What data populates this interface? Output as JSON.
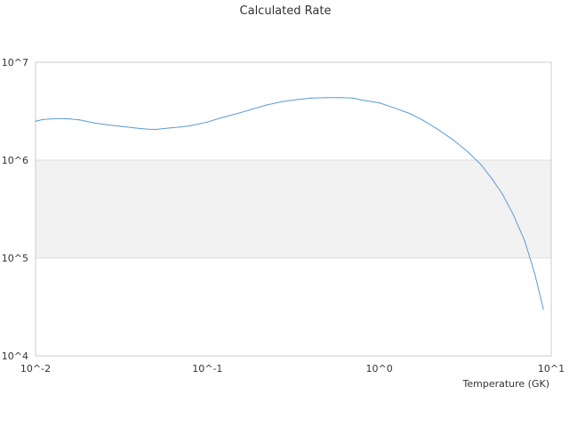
{
  "chart_data": {
    "type": "line",
    "title": "Calculated Rate",
    "xlabel": "Temperature (GK)",
    "ylabel": "",
    "x_scale": "log",
    "y_scale": "log",
    "xlim": [
      0.01,
      10
    ],
    "ylim": [
      10000,
      10000000
    ],
    "x_ticks": [
      "10^-2",
      "10^-1",
      "10^0",
      "10^1"
    ],
    "y_ticks": [
      "10^4",
      "10^5",
      "10^6",
      "10^7"
    ],
    "grid": "horizontal",
    "band_fill": [
      100000,
      1000000
    ],
    "colors": {
      "line": "#5b9bd5",
      "band": "#f2f2f2",
      "grid": "#dddddd",
      "axis": "#cccccc"
    },
    "series": [
      {
        "name": "",
        "x": [
          0.01,
          0.011,
          0.013,
          0.015,
          0.018,
          0.022,
          0.026,
          0.032,
          0.038,
          0.045,
          0.05,
          0.06,
          0.07,
          0.08,
          0.1,
          0.12,
          0.15,
          0.18,
          0.22,
          0.27,
          0.33,
          0.4,
          0.5,
          0.6,
          0.7,
          0.8,
          1.0,
          1.2,
          1.5,
          1.8,
          2.2,
          2.7,
          3.3,
          3.9,
          4.5,
          5.2,
          6.0,
          7.0,
          8.0,
          9.0
        ],
        "y": [
          2500000,
          2600000,
          2650000,
          2650000,
          2580000,
          2400000,
          2300000,
          2200000,
          2130000,
          2070000,
          2060000,
          2130000,
          2180000,
          2250000,
          2450000,
          2700000,
          3000000,
          3300000,
          3650000,
          3950000,
          4150000,
          4300000,
          4350000,
          4350000,
          4300000,
          4100000,
          3850000,
          3450000,
          3000000,
          2550000,
          2050000,
          1600000,
          1200000,
          900000,
          650000,
          450000,
          280000,
          150000,
          70000,
          30000
        ]
      }
    ]
  }
}
